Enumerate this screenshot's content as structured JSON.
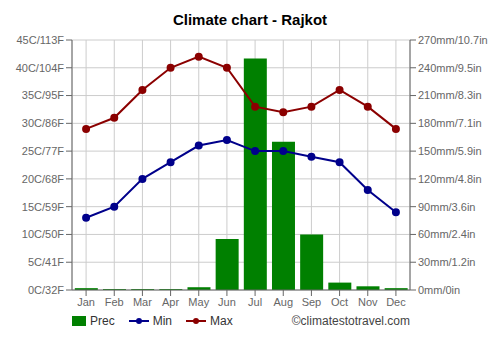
{
  "chart_data": {
    "type": "bar",
    "title": "Climate chart - Rajkot",
    "categories": [
      "Jan",
      "Feb",
      "Mar",
      "Apr",
      "May",
      "Jun",
      "Jul",
      "Aug",
      "Sep",
      "Oct",
      "Nov",
      "Dec"
    ],
    "series": [
      {
        "name": "Prec",
        "type": "bar",
        "axis": "y2",
        "color": "#008000",
        "values": [
          2,
          1,
          1,
          1,
          3,
          55,
          250,
          160,
          60,
          8,
          4,
          2
        ]
      },
      {
        "name": "Min",
        "type": "line",
        "color": "#00008B",
        "marker": "circle",
        "values": [
          13,
          15,
          20,
          23,
          26,
          27,
          25,
          25,
          24,
          23,
          18,
          14
        ]
      },
      {
        "name": "Max",
        "type": "line",
        "color": "#8B0000",
        "marker": "circle",
        "values": [
          29,
          31,
          36,
          40,
          42,
          40,
          33,
          32,
          33,
          36,
          33,
          29
        ]
      }
    ],
    "ylim": [
      0,
      45
    ],
    "yticks": [
      {
        "value": 0,
        "label": "0C/32F"
      },
      {
        "value": 5,
        "label": "5C/41F"
      },
      {
        "value": 10,
        "label": "10C/50F"
      },
      {
        "value": 15,
        "label": "15C/59F"
      },
      {
        "value": 20,
        "label": "20C/68F"
      },
      {
        "value": 25,
        "label": "25C/77F"
      },
      {
        "value": 30,
        "label": "30C/86F"
      },
      {
        "value": 35,
        "label": "35C/95F"
      },
      {
        "value": 40,
        "label": "40C/104F"
      },
      {
        "value": 45,
        "label": "45C/113F"
      }
    ],
    "y2lim": [
      0,
      270
    ],
    "y2ticks": [
      {
        "value": 0,
        "label": "0mm/0in"
      },
      {
        "value": 30,
        "label": "30mm/1.2in"
      },
      {
        "value": 60,
        "label": "60mm/2.4in"
      },
      {
        "value": 90,
        "label": "90mm/3.6in"
      },
      {
        "value": 120,
        "label": "120mm/4.8in"
      },
      {
        "value": 150,
        "label": "150mm/5.9in"
      },
      {
        "value": 180,
        "label": "180mm/7.1in"
      },
      {
        "value": 210,
        "label": "210mm/8.3in"
      },
      {
        "value": 240,
        "label": "240mm/9.5in"
      },
      {
        "value": 270,
        "label": "270mm/10.7in"
      }
    ],
    "grid": true,
    "legend": "bottom",
    "annotations": [
      "©climatestotravel.com"
    ]
  }
}
